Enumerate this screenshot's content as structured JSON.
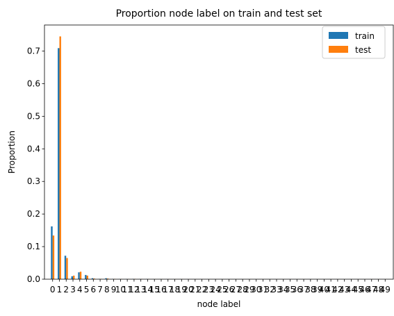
{
  "chart_data": {
    "type": "bar",
    "title": "Proportion node label on train and test set",
    "xlabel": "node label",
    "ylabel": "Proportion",
    "ylim": [
      0,
      0.78
    ],
    "yticks": [
      0.0,
      0.1,
      0.2,
      0.3,
      0.4,
      0.5,
      0.6,
      0.7
    ],
    "ytick_labels": [
      "0.0",
      "0.1",
      "0.2",
      "0.3",
      "0.4",
      "0.5",
      "0.6",
      "0.7"
    ],
    "categories": [
      "0",
      "1",
      "2",
      "3",
      "4",
      "5",
      "6",
      "7",
      "8",
      "9",
      "10",
      "11",
      "12",
      "13",
      "14",
      "15",
      "16",
      "17",
      "18",
      "19",
      "20",
      "21",
      "22",
      "23",
      "24",
      "25",
      "26",
      "27",
      "28",
      "29",
      "30",
      "31",
      "32",
      "33",
      "34",
      "35",
      "36",
      "37",
      "38",
      "39",
      "40",
      "41",
      "42",
      "43",
      "44",
      "45",
      "46",
      "47",
      "48",
      "49"
    ],
    "series": [
      {
        "name": "train",
        "color": "#1f77b4",
        "values": [
          0.162,
          0.709,
          0.072,
          0.009,
          0.021,
          0.013,
          0.003,
          0.001,
          0.003,
          0.001,
          0.0005,
          0.0005,
          0.001,
          0.0005,
          0.0005,
          0.0003,
          0.0003,
          0.0003,
          0.0003,
          0.0003,
          0.0002,
          0.0002,
          0.0002,
          0.0002,
          0.0002,
          0.0002,
          0.0002,
          0.0002,
          0.0002,
          0.0002,
          0.0001,
          0.0001,
          0.0001,
          0.0001,
          0.0001,
          0.0001,
          0.0001,
          0.0001,
          0.0001,
          0.0001,
          0.0001,
          0.0001,
          0.0001,
          0.0001,
          0.0001,
          0.0001,
          0.0001,
          0.0001,
          0.0001,
          0.0001
        ]
      },
      {
        "name": "test",
        "color": "#ff7f0e",
        "values": [
          0.134,
          0.745,
          0.065,
          0.011,
          0.023,
          0.011,
          0.002,
          0.001,
          0.002,
          0.001,
          0.0005,
          0.0005,
          0.001,
          0.0005,
          0.0005,
          0.0003,
          0.0003,
          0.0003,
          0.0003,
          0.0003,
          0.0002,
          0.0002,
          0.0002,
          0.0002,
          0.0002,
          0.0002,
          0.0002,
          0.0002,
          0.0002,
          0.0002,
          0.0001,
          0.0001,
          0.0001,
          0.0001,
          0.0001,
          0.0001,
          0.0001,
          0.0001,
          0.0001,
          0.0001,
          0.0001,
          0.0001,
          0.0001,
          0.0001,
          0.0001,
          0.0001,
          0.0001,
          0.0001,
          0.0001,
          0.0001
        ]
      }
    ],
    "legend": "upper-right",
    "grid": false
  }
}
